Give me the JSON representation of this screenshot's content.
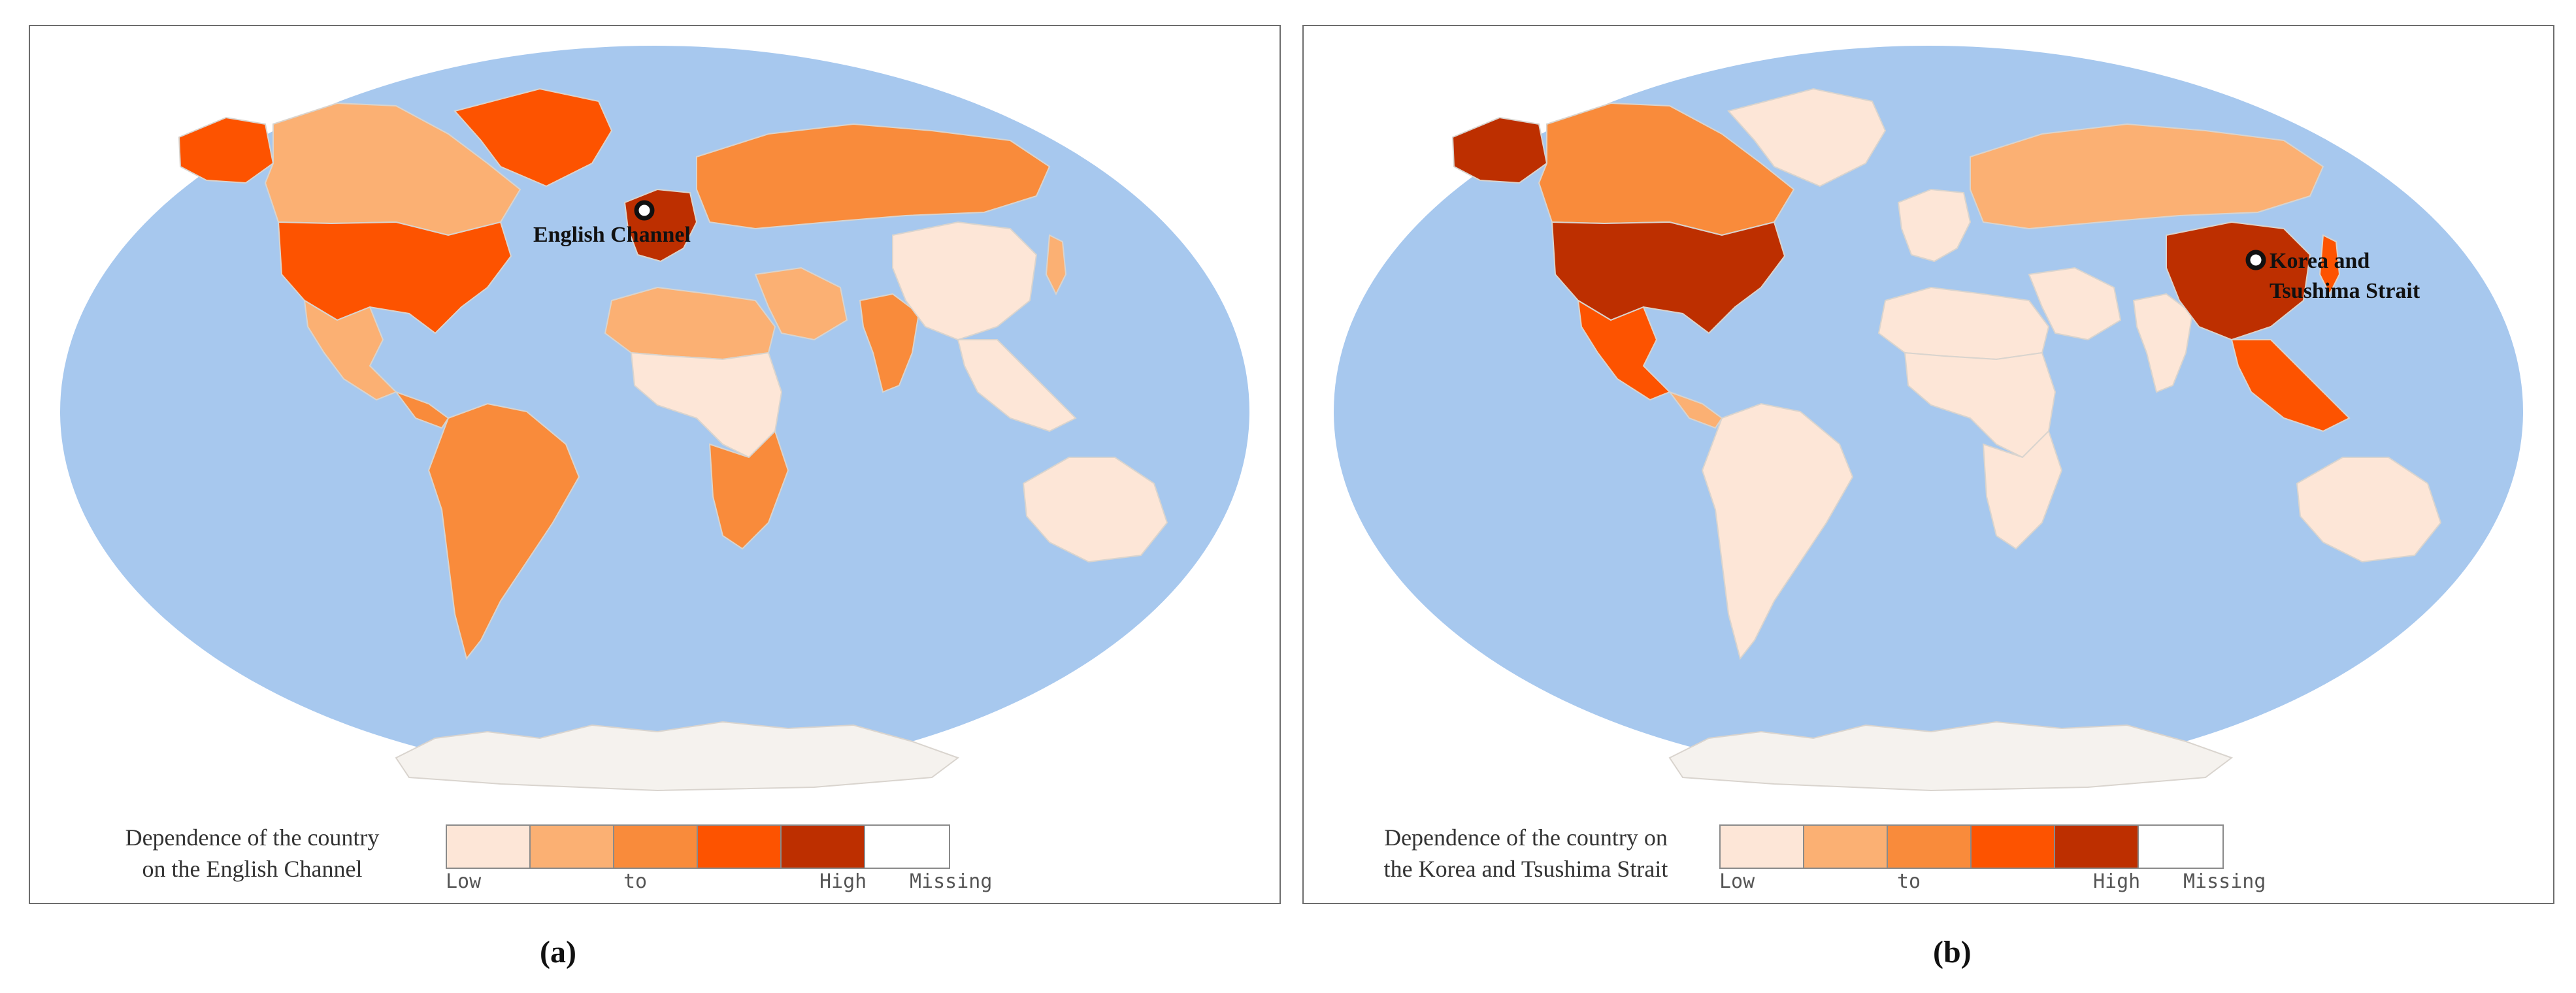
{
  "panels": [
    {
      "id": "a",
      "caption": "(a)",
      "strait_label": "English Channel",
      "strait_label_lines": [
        "English Channel"
      ],
      "legend_title_lines": [
        "Dependence of the country",
        "on the English Channel"
      ],
      "legend_labels": {
        "low": "Low",
        "to": "to",
        "high": "High",
        "missing": "Missing"
      },
      "legend_colors": [
        "#fde6d7",
        "#fbb073",
        "#f98b3b",
        "#fd5300",
        "#bd2f00",
        "#ffffff"
      ],
      "region_levels": {
        "canada": 2,
        "usa": 4,
        "mexico": 2,
        "greenland": 4,
        "alaska": 4,
        "central_america": 3,
        "south_america": 3,
        "western_europe": 5,
        "russia": 3,
        "north_africa": 2,
        "central_africa": 1,
        "india": 3,
        "china": 1,
        "southeast_asia": 1,
        "australia": 1,
        "middle_east": 2,
        "southern_africa": 3,
        "japan": 2
      }
    },
    {
      "id": "b",
      "caption": "(b)",
      "strait_label": "Korea and Tsushima Strait",
      "strait_label_lines": [
        "Korea and",
        "Tsushima Strait"
      ],
      "legend_title_lines": [
        "Dependence of the country on",
        "the Korea and Tsushima Strait"
      ],
      "legend_labels": {
        "low": "Low",
        "to": "to",
        "high": "High",
        "missing": "Missing"
      },
      "legend_colors": [
        "#fde6d7",
        "#fbb073",
        "#f98b3b",
        "#fd5300",
        "#bd2f00",
        "#ffffff"
      ],
      "region_levels": {
        "canada": 3,
        "usa": 5,
        "mexico": 4,
        "greenland": 1,
        "alaska": 5,
        "central_america": 2,
        "south_america": 1,
        "western_europe": 1,
        "russia": 2,
        "north_africa": 1,
        "central_africa": 1,
        "india": 1,
        "china": 5,
        "southeast_asia": 4,
        "australia": 1,
        "middle_east": 1,
        "southern_africa": 1,
        "japan": 4
      }
    }
  ],
  "colors": {
    "ocean": "#a7c8ee",
    "antarctica": "#f5f2ee",
    "border": "#d9d4ce"
  }
}
